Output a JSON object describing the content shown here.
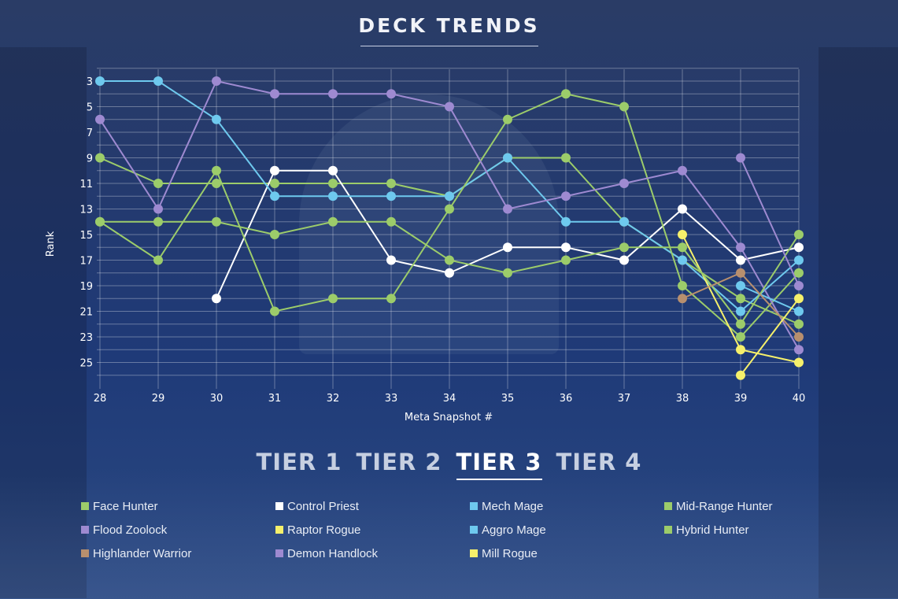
{
  "page": {
    "title": "DECK TRENDS"
  },
  "tiers": [
    {
      "label": "TIER 1",
      "active": false
    },
    {
      "label": "TIER 2",
      "active": false
    },
    {
      "label": "TIER 3",
      "active": true
    },
    {
      "label": "TIER 4",
      "active": false
    }
  ],
  "colors": {
    "green": "#9ccc6a",
    "white": "#ffffff",
    "blue": "#6ec9ee",
    "purple": "#9e8ad1",
    "yellow": "#f6f06b",
    "tan": "#b88f6e"
  },
  "chart_data": {
    "type": "line",
    "title": "DECK TRENDS",
    "xlabel": "Meta Snapshot #",
    "ylabel": "Rank",
    "x": [
      28,
      29,
      30,
      31,
      32,
      33,
      34,
      35,
      36,
      37,
      38,
      39,
      40
    ],
    "xlim": [
      28,
      40
    ],
    "ylim": [
      27,
      2
    ],
    "y_inverted": true,
    "y_ticks": [
      3,
      5,
      7,
      9,
      11,
      13,
      15,
      17,
      19,
      21,
      23,
      25
    ],
    "grid": true,
    "legend_position": "bottom",
    "series": [
      {
        "name": "Face Hunter",
        "color": "#9ccc6a",
        "points": [
          [
            28,
            9
          ],
          [
            29,
            11
          ],
          [
            30,
            11
          ],
          [
            31,
            11
          ],
          [
            32,
            11
          ],
          [
            33,
            11
          ],
          [
            34,
            12
          ],
          [
            35,
            9
          ],
          [
            36,
            9
          ],
          [
            37,
            14
          ],
          [
            38,
            17
          ],
          [
            39,
            20
          ],
          [
            40,
            22
          ]
        ]
      },
      {
        "name": "Control Priest",
        "color": "#ffffff",
        "points": [
          [
            30,
            20
          ],
          [
            31,
            10
          ],
          [
            32,
            10
          ],
          [
            33,
            17
          ],
          [
            34,
            18
          ],
          [
            35,
            16
          ],
          [
            36,
            16
          ],
          [
            37,
            17
          ],
          [
            38,
            13
          ],
          [
            39,
            17
          ],
          [
            40,
            16
          ]
        ]
      },
      {
        "name": "Mech Mage",
        "color": "#6ec9ee",
        "points": [
          [
            28,
            3
          ],
          [
            29,
            3
          ],
          [
            30,
            6
          ],
          [
            31,
            12
          ],
          [
            32,
            12
          ],
          [
            33,
            12
          ],
          [
            34,
            12
          ],
          [
            35,
            9
          ],
          [
            36,
            14
          ],
          [
            37,
            14
          ],
          [
            38,
            17
          ],
          [
            39,
            21
          ],
          [
            40,
            17
          ]
        ]
      },
      {
        "name": "Mid-Range Hunter",
        "color": "#9ccc6a",
        "points": [
          [
            28,
            14
          ],
          [
            29,
            17
          ],
          [
            30,
            10
          ],
          [
            31,
            21
          ],
          [
            32,
            20
          ],
          [
            33,
            20
          ],
          [
            34,
            13
          ],
          [
            35,
            6
          ],
          [
            36,
            4
          ],
          [
            37,
            5
          ],
          [
            38,
            19
          ],
          [
            39,
            23
          ],
          [
            40,
            18
          ]
        ]
      },
      {
        "name": "Flood Zoolock",
        "color": "#9e8ad1",
        "points": [
          [
            28,
            6
          ],
          [
            29,
            13
          ],
          [
            30,
            3
          ],
          [
            31,
            4
          ],
          [
            32,
            4
          ],
          [
            33,
            4
          ],
          [
            34,
            5
          ],
          [
            35,
            13
          ],
          [
            36,
            12
          ],
          [
            37,
            11
          ],
          [
            38,
            10
          ],
          [
            39,
            16
          ],
          [
            40,
            24
          ]
        ]
      },
      {
        "name": "Raptor Rogue",
        "color": "#f6f06b",
        "points": [
          [
            38,
            15
          ],
          [
            39,
            24
          ],
          [
            40,
            25
          ]
        ]
      },
      {
        "name": "Aggro Mage",
        "color": "#6ec9ee",
        "points": [
          [
            39,
            19
          ],
          [
            40,
            21
          ]
        ]
      },
      {
        "name": "Hybrid Hunter",
        "color": "#9ccc6a",
        "points": [
          [
            28,
            14
          ],
          [
            29,
            14
          ],
          [
            30,
            14
          ],
          [
            31,
            15
          ],
          [
            32,
            14
          ],
          [
            33,
            14
          ],
          [
            34,
            17
          ],
          [
            35,
            18
          ],
          [
            36,
            17
          ],
          [
            37,
            16
          ],
          [
            38,
            16
          ],
          [
            39,
            22
          ],
          [
            40,
            15
          ]
        ]
      },
      {
        "name": "Highlander Warrior",
        "color": "#b88f6e",
        "points": [
          [
            38,
            20
          ],
          [
            39,
            18
          ],
          [
            40,
            23
          ]
        ]
      },
      {
        "name": "Demon Handlock",
        "color": "#9e8ad1",
        "points": [
          [
            39,
            9
          ],
          [
            40,
            19
          ]
        ]
      },
      {
        "name": "Mill Rogue",
        "color": "#f6f06b",
        "points": [
          [
            39,
            26
          ],
          [
            40,
            20
          ]
        ]
      }
    ]
  },
  "legend": [
    {
      "label": "Face Hunter",
      "color": "#9ccc6a"
    },
    {
      "label": "Control Priest",
      "color": "#ffffff"
    },
    {
      "label": "Mech Mage",
      "color": "#6ec9ee"
    },
    {
      "label": "Mid-Range Hunter",
      "color": "#9ccc6a"
    },
    {
      "label": "Flood Zoolock",
      "color": "#9e8ad1"
    },
    {
      "label": "Raptor Rogue",
      "color": "#f6f06b"
    },
    {
      "label": "Aggro Mage",
      "color": "#6ec9ee"
    },
    {
      "label": "Hybrid Hunter",
      "color": "#9ccc6a"
    },
    {
      "label": "Highlander Warrior",
      "color": "#b88f6e"
    },
    {
      "label": "Demon Handlock",
      "color": "#9e8ad1"
    },
    {
      "label": "Mill Rogue",
      "color": "#f6f06b"
    }
  ]
}
